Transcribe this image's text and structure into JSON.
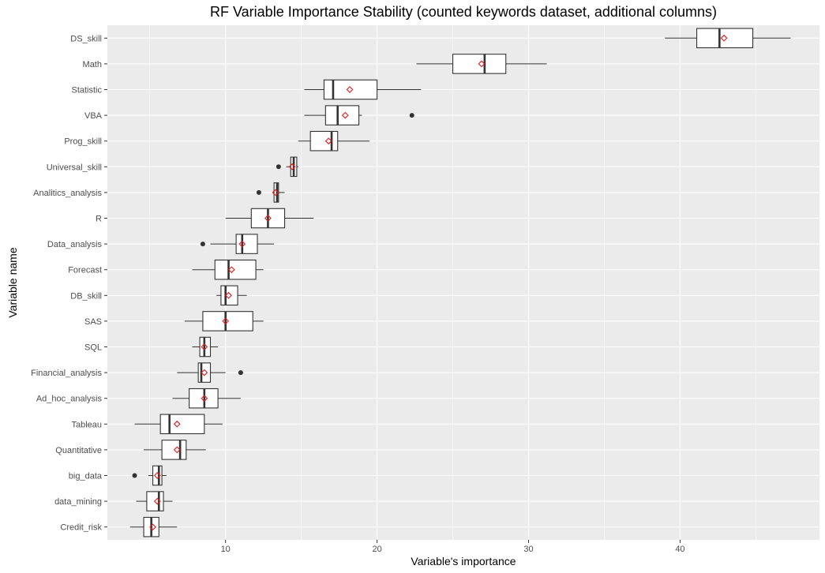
{
  "chart_data": {
    "type": "boxplot",
    "orientation": "horizontal",
    "title": "RF Variable Importance Stability (counted keywords dataset, additional columns)",
    "xlabel": "Variable's importance",
    "ylabel": "Variable name",
    "xlim": [
      2.2,
      49.2
    ],
    "x_ticks": [
      10,
      20,
      30,
      40
    ],
    "grid": true,
    "legend": "none",
    "colors": {
      "panel": "#ebebeb",
      "box_fill": "#ffffff",
      "box_stroke": "#333333",
      "mean_marker": "#e41a1c"
    },
    "series": [
      {
        "name": "DS_skill",
        "whisker_low": 39.0,
        "q1": 41.1,
        "median": 42.6,
        "q3": 44.8,
        "whisker_high": 47.3,
        "mean": 42.9,
        "outliers": []
      },
      {
        "name": "Math",
        "whisker_low": 22.6,
        "q1": 25.0,
        "median": 27.1,
        "q3": 28.5,
        "whisker_high": 31.2,
        "mean": 26.9,
        "outliers": []
      },
      {
        "name": "Statistic",
        "whisker_low": 15.2,
        "q1": 16.5,
        "median": 17.1,
        "q3": 20.0,
        "whisker_high": 22.9,
        "mean": 18.2,
        "outliers": []
      },
      {
        "name": "VBA",
        "whisker_low": 15.2,
        "q1": 16.6,
        "median": 17.4,
        "q3": 18.8,
        "whisker_high": 19.0,
        "mean": 17.9,
        "outliers": [
          22.3
        ]
      },
      {
        "name": "Prog_skill",
        "whisker_low": 14.8,
        "q1": 15.6,
        "median": 17.0,
        "q3": 17.4,
        "whisker_high": 19.5,
        "mean": 16.8,
        "outliers": []
      },
      {
        "name": "Universal_skill",
        "whisker_low": 14.0,
        "q1": 14.3,
        "median": 14.5,
        "q3": 14.7,
        "whisker_high": 14.8,
        "mean": 14.4,
        "outliers": [
          13.5
        ]
      },
      {
        "name": "Analitics_analysis",
        "whisker_low": 13.1,
        "q1": 13.2,
        "median": 13.4,
        "q3": 13.5,
        "whisker_high": 13.9,
        "mean": 13.3,
        "outliers": [
          12.2
        ]
      },
      {
        "name": "R",
        "whisker_low": 10.0,
        "q1": 11.7,
        "median": 12.8,
        "q3": 13.9,
        "whisker_high": 15.8,
        "mean": 12.8,
        "outliers": []
      },
      {
        "name": "Data_analysis",
        "whisker_low": 9.0,
        "q1": 10.7,
        "median": 11.1,
        "q3": 12.1,
        "whisker_high": 13.2,
        "mean": 11.1,
        "outliers": [
          8.5
        ]
      },
      {
        "name": "Forecast",
        "whisker_low": 7.8,
        "q1": 9.3,
        "median": 10.2,
        "q3": 12.0,
        "whisker_high": 12.5,
        "mean": 10.4,
        "outliers": []
      },
      {
        "name": "DB_skill",
        "whisker_low": 9.4,
        "q1": 9.7,
        "median": 10.0,
        "q3": 10.8,
        "whisker_high": 11.4,
        "mean": 10.2,
        "outliers": []
      },
      {
        "name": "SAS",
        "whisker_low": 7.3,
        "q1": 8.5,
        "median": 10.0,
        "q3": 11.8,
        "whisker_high": 12.5,
        "mean": 10.0,
        "outliers": []
      },
      {
        "name": "SQL",
        "whisker_low": 7.8,
        "q1": 8.3,
        "median": 8.6,
        "q3": 9.0,
        "whisker_high": 9.5,
        "mean": 8.6,
        "outliers": []
      },
      {
        "name": "Financial_analysis",
        "whisker_low": 6.8,
        "q1": 8.2,
        "median": 8.4,
        "q3": 9.0,
        "whisker_high": 10.0,
        "mean": 8.6,
        "outliers": [
          11.0
        ]
      },
      {
        "name": "Ad_hoc_analysis",
        "whisker_low": 6.5,
        "q1": 7.6,
        "median": 8.6,
        "q3": 9.5,
        "whisker_high": 11.0,
        "mean": 8.6,
        "outliers": []
      },
      {
        "name": "Tableau",
        "whisker_low": 4.0,
        "q1": 5.7,
        "median": 6.3,
        "q3": 8.6,
        "whisker_high": 9.8,
        "mean": 6.8,
        "outliers": []
      },
      {
        "name": "Quantitative",
        "whisker_low": 4.6,
        "q1": 5.8,
        "median": 7.0,
        "q3": 7.4,
        "whisker_high": 8.7,
        "mean": 6.8,
        "outliers": []
      },
      {
        "name": "big_data",
        "whisker_low": 4.9,
        "q1": 5.2,
        "median": 5.6,
        "q3": 5.8,
        "whisker_high": 6.1,
        "mean": 5.5,
        "outliers": [
          4.0
        ]
      },
      {
        "name": "data_mining",
        "whisker_low": 4.1,
        "q1": 4.8,
        "median": 5.6,
        "q3": 5.9,
        "whisker_high": 6.5,
        "mean": 5.5,
        "outliers": []
      },
      {
        "name": "Credit_risk",
        "whisker_low": 3.7,
        "q1": 4.6,
        "median": 5.1,
        "q3": 5.6,
        "whisker_high": 6.8,
        "mean": 5.2,
        "outliers": []
      }
    ]
  }
}
